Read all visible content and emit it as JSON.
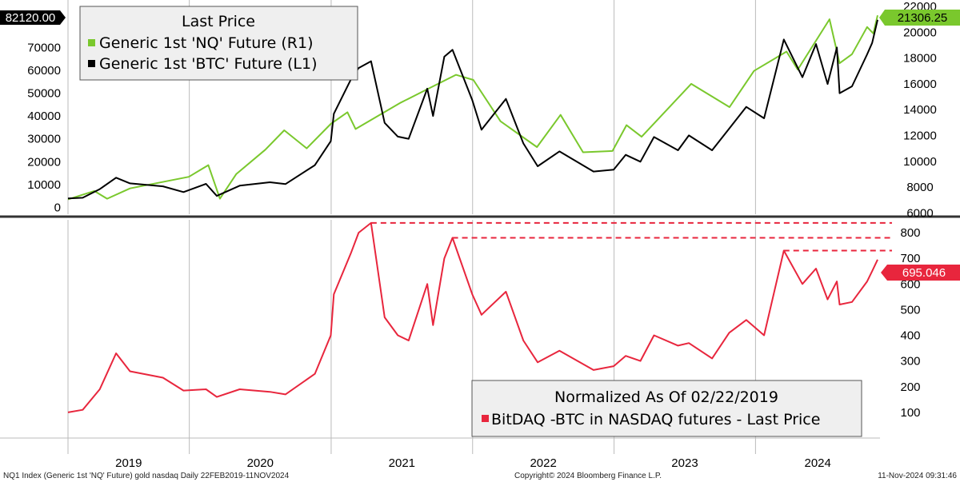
{
  "chart_data": [
    {
      "type": "line",
      "legend": {
        "title": "Last Price",
        "placement": "top-left",
        "entries": [
          {
            "label": "Generic 1st 'NQ' Future  (R1)",
            "color": "#7ac82d"
          },
          {
            "label": "Generic 1st 'BTC' Future  (L1)",
            "color": "#000000"
          }
        ]
      },
      "x_range": [
        "2019-02-22",
        "2024-11-11"
      ],
      "year_labels": [
        "2019",
        "2020",
        "2021",
        "2022",
        "2023",
        "2024"
      ],
      "left_axis": {
        "ticks": [
          0,
          10000,
          20000,
          30000,
          40000,
          50000,
          60000,
          70000
        ],
        "ylim": [
          -3000,
          88000
        ]
      },
      "right_axis": {
        "ticks": [
          6000,
          8000,
          10000,
          12000,
          14000,
          16000,
          18000,
          20000,
          22000
        ],
        "ylim": [
          5900,
          22000
        ]
      },
      "last_values": {
        "left": "82120.00",
        "right": "21306.25"
      },
      "series": [
        {
          "name": "Generic 1st 'NQ' Future  (R1)",
          "axis": "right",
          "color": "#7ac82d",
          "points": [
            [
              "2019-02-22",
              7050
            ],
            [
              "2019-05-01",
              7700
            ],
            [
              "2019-06-03",
              7100
            ],
            [
              "2019-08-01",
              7900
            ],
            [
              "2019-12-31",
              8800
            ],
            [
              "2020-02-19",
              9700
            ],
            [
              "2020-03-20",
              7100
            ],
            [
              "2020-05-01",
              9000
            ],
            [
              "2020-07-15",
              10900
            ],
            [
              "2020-09-02",
              12400
            ],
            [
              "2020-10-30",
              11000
            ],
            [
              "2020-12-31",
              12900
            ],
            [
              "2021-02-12",
              13800
            ],
            [
              "2021-03-05",
              12500
            ],
            [
              "2021-06-30",
              14550
            ],
            [
              "2021-09-07",
              15600
            ],
            [
              "2021-11-19",
              16700
            ],
            [
              "2022-01-03",
              16300
            ],
            [
              "2022-03-14",
              13100
            ],
            [
              "2022-06-16",
              11100
            ],
            [
              "2022-08-16",
              13600
            ],
            [
              "2022-10-13",
              10700
            ],
            [
              "2022-12-28",
              10800
            ],
            [
              "2023-02-02",
              12800
            ],
            [
              "2023-03-13",
              11900
            ],
            [
              "2023-07-19",
              16000
            ],
            [
              "2023-10-26",
              14200
            ],
            [
              "2023-12-28",
              17000
            ],
            [
              "2024-03-21",
              18500
            ],
            [
              "2024-04-19",
              17100
            ],
            [
              "2024-07-10",
              21000
            ],
            [
              "2024-08-05",
              17600
            ],
            [
              "2024-09-06",
              18300
            ],
            [
              "2024-10-15",
              20400
            ],
            [
              "2024-10-31",
              19900
            ],
            [
              "2024-11-11",
              21306.25
            ]
          ]
        },
        {
          "name": "Generic 1st 'BTC' Future  (L1)",
          "axis": "left",
          "color": "#000000",
          "points": [
            [
              "2019-02-22",
              3900
            ],
            [
              "2019-04-01",
              4200
            ],
            [
              "2019-05-15",
              8000
            ],
            [
              "2019-06-26",
              13000
            ],
            [
              "2019-08-01",
              10500
            ],
            [
              "2019-10-25",
              9200
            ],
            [
              "2019-12-17",
              6700
            ],
            [
              "2020-02-13",
              10300
            ],
            [
              "2020-03-12",
              5000
            ],
            [
              "2020-05-10",
              9500
            ],
            [
              "2020-07-27",
              11000
            ],
            [
              "2020-09-05",
              10200
            ],
            [
              "2020-11-20",
              18500
            ],
            [
              "2020-12-31",
              29000
            ],
            [
              "2021-01-08",
              41000
            ],
            [
              "2021-02-21",
              56000
            ],
            [
              "2021-03-13",
              61000
            ],
            [
              "2021-04-14",
              64000
            ],
            [
              "2021-05-19",
              37000
            ],
            [
              "2021-06-22",
              31000
            ],
            [
              "2021-07-20",
              30000
            ],
            [
              "2021-09-06",
              52000
            ],
            [
              "2021-09-21",
              40000
            ],
            [
              "2021-10-20",
              66000
            ],
            [
              "2021-11-10",
              69000
            ],
            [
              "2021-12-31",
              47000
            ],
            [
              "2022-01-24",
              34000
            ],
            [
              "2022-03-28",
              47500
            ],
            [
              "2022-05-12",
              28000
            ],
            [
              "2022-06-18",
              18000
            ],
            [
              "2022-08-13",
              24500
            ],
            [
              "2022-11-09",
              15700
            ],
            [
              "2022-12-31",
              16500
            ],
            [
              "2023-01-31",
              23000
            ],
            [
              "2023-03-10",
              20000
            ],
            [
              "2023-04-14",
              30800
            ],
            [
              "2023-06-15",
              25000
            ],
            [
              "2023-07-13",
              31500
            ],
            [
              "2023-09-11",
              25000
            ],
            [
              "2023-10-25",
              34500
            ],
            [
              "2023-12-08",
              44000
            ],
            [
              "2024-01-23",
              39000
            ],
            [
              "2024-03-14",
              73500
            ],
            [
              "2024-05-01",
              57000
            ],
            [
              "2024-06-05",
              71500
            ],
            [
              "2024-07-05",
              54000
            ],
            [
              "2024-07-29",
              70000
            ],
            [
              "2024-08-05",
              50000
            ],
            [
              "2024-09-06",
              53000
            ],
            [
              "2024-10-15",
              67000
            ],
            [
              "2024-10-28",
              72000
            ],
            [
              "2024-11-11",
              82120
            ]
          ]
        }
      ]
    },
    {
      "type": "line",
      "legend": {
        "title": "Normalized As Of 02/22/2019",
        "placement": "bottom-right",
        "entries": [
          {
            "label": "BitDAQ -BTC in NASDAQ futures - Last Price",
            "color": "#e8263d"
          }
        ]
      },
      "x_range": [
        "2019-02-22",
        "2024-11-11"
      ],
      "right_axis": {
        "ticks": [
          100,
          200,
          300,
          400,
          500,
          600,
          700,
          800
        ],
        "ylim": [
          0,
          850
        ]
      },
      "last_value": "695.046",
      "reference_lines": [
        {
          "value": 838,
          "from": "2021-04-14",
          "style": "dashed"
        },
        {
          "value": 780,
          "from": "2021-11-10",
          "style": "dashed"
        },
        {
          "value": 730,
          "from": "2024-03-14",
          "style": "dashed"
        }
      ],
      "series": [
        {
          "name": "BitDAQ -BTC in NASDAQ futures - Last Price",
          "axis": "right",
          "color": "#e8263d",
          "points": [
            [
              "2019-02-22",
              100
            ],
            [
              "2019-04-01",
              110
            ],
            [
              "2019-05-15",
              190
            ],
            [
              "2019-06-26",
              330
            ],
            [
              "2019-08-01",
              260
            ],
            [
              "2019-10-25",
              235
            ],
            [
              "2019-12-17",
              185
            ],
            [
              "2020-02-13",
              190
            ],
            [
              "2020-03-12",
              160
            ],
            [
              "2020-05-10",
              190
            ],
            [
              "2020-07-27",
              180
            ],
            [
              "2020-09-05",
              170
            ],
            [
              "2020-11-20",
              250
            ],
            [
              "2020-12-31",
              400
            ],
            [
              "2021-01-08",
              560
            ],
            [
              "2021-02-21",
              720
            ],
            [
              "2021-03-13",
              800
            ],
            [
              "2021-04-14",
              838
            ],
            [
              "2021-05-19",
              470
            ],
            [
              "2021-06-22",
              400
            ],
            [
              "2021-07-20",
              380
            ],
            [
              "2021-09-06",
              600
            ],
            [
              "2021-09-21",
              440
            ],
            [
              "2021-10-20",
              700
            ],
            [
              "2021-11-10",
              780
            ],
            [
              "2021-12-31",
              560
            ],
            [
              "2022-01-24",
              480
            ],
            [
              "2022-03-28",
              570
            ],
            [
              "2022-05-12",
              380
            ],
            [
              "2022-06-18",
              295
            ],
            [
              "2022-08-13",
              340
            ],
            [
              "2022-11-09",
              265
            ],
            [
              "2022-12-31",
              280
            ],
            [
              "2023-01-31",
              320
            ],
            [
              "2023-03-10",
              300
            ],
            [
              "2023-04-14",
              400
            ],
            [
              "2023-06-15",
              360
            ],
            [
              "2023-07-13",
              370
            ],
            [
              "2023-09-11",
              310
            ],
            [
              "2023-10-25",
              410
            ],
            [
              "2023-12-08",
              460
            ],
            [
              "2024-01-23",
              400
            ],
            [
              "2024-03-14",
              730
            ],
            [
              "2024-05-01",
              600
            ],
            [
              "2024-06-05",
              660
            ],
            [
              "2024-07-05",
              540
            ],
            [
              "2024-07-29",
              610
            ],
            [
              "2024-08-05",
              520
            ],
            [
              "2024-09-06",
              530
            ],
            [
              "2024-10-15",
              610
            ],
            [
              "2024-10-28",
              650
            ],
            [
              "2024-11-11",
              695.046
            ]
          ]
        }
      ]
    }
  ],
  "footer": {
    "left": "NQ1 Index (Generic 1st 'NQ' Future) gold nasdaq  Daily 22FEB2019-11NOV2024",
    "center": "Copyright© 2024 Bloomberg Finance L.P.",
    "right": "11-Nov-2024 09:31:46"
  }
}
